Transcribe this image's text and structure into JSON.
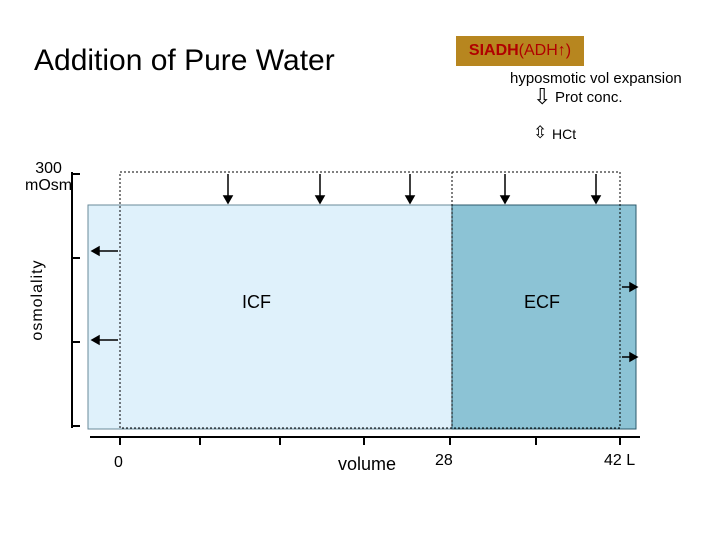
{
  "title": "Addition of Pure Water",
  "badge": {
    "bold": "SIADH",
    "rest": " (ADH↑)"
  },
  "notes": {
    "line1": "hyposmotic vol expansion",
    "line2": "Prot conc.",
    "line2_icon": "down-arrow-icon",
    "line3": "HCt",
    "line3_icon": "up-down-arrow-icon"
  },
  "y_axis": {
    "top_value": "300\nmOsm",
    "label": "osmolality"
  },
  "compartments": {
    "icf": "ICF",
    "ecf": "ECF"
  },
  "x_axis": {
    "tick0": "0",
    "label": "volume",
    "tick28": "28",
    "tick42": "42 L"
  },
  "colors": {
    "icf_fill": "#dff1fb",
    "ecf_fill": "#8cc3d5",
    "badge_bg": "#b7861f",
    "badge_text": "#b00000"
  }
}
